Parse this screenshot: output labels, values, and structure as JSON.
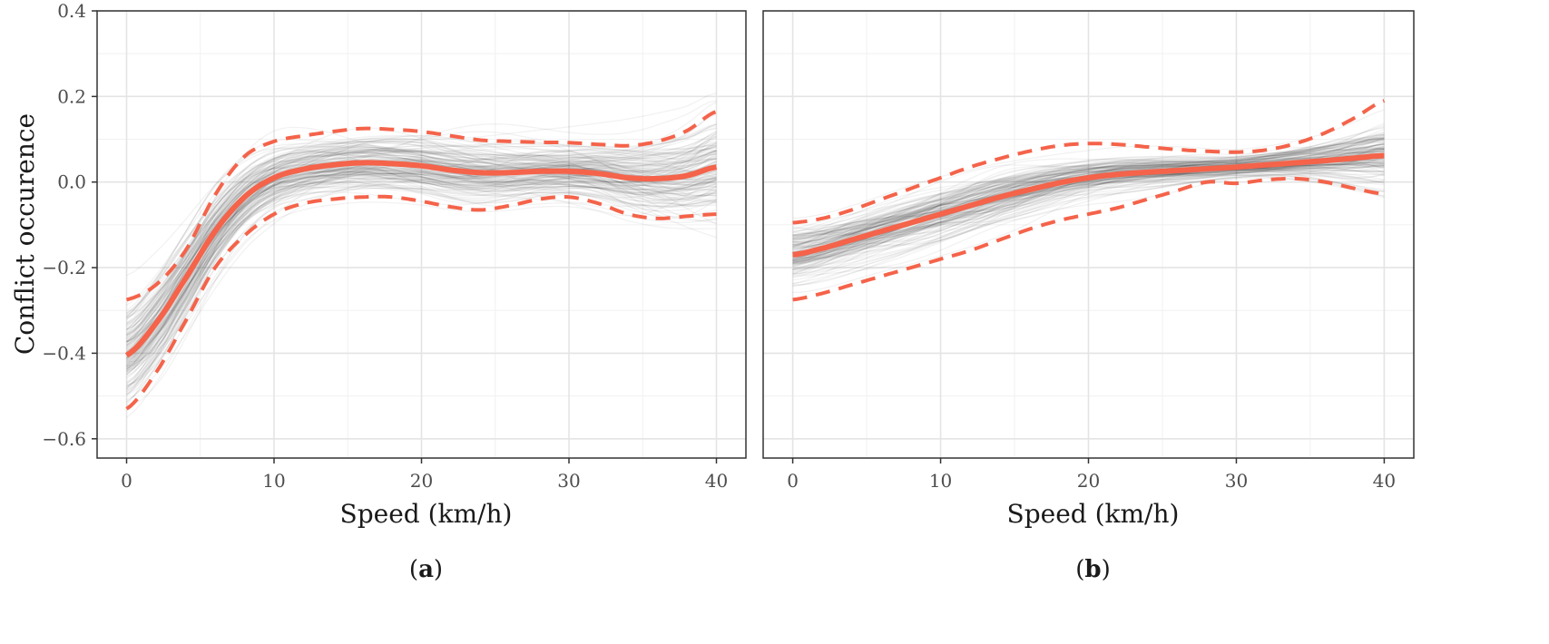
{
  "figure": {
    "ylabel": "Conflict occurence",
    "colors": {
      "background": "#ffffff",
      "grid_major": "#e4e4e4",
      "grid_minor": "#f1f1f1",
      "border": "#333333",
      "samples": "#1a1a1a",
      "mean": "#f4634a",
      "band": "#f4634a"
    }
  },
  "chart_data": [
    {
      "type": "line",
      "panel_label": "a",
      "xlabel": "Speed (km/h)",
      "ylabel": "Conflict occurence",
      "xlim": [
        -2,
        42
      ],
      "ylim": [
        -0.645,
        0.4
      ],
      "x_ticks": [
        0,
        10,
        20,
        30,
        40
      ],
      "y_ticks": [
        0.4,
        0.2,
        0.0,
        -0.2,
        -0.4,
        -0.6
      ],
      "x_tick_labels": [
        "0",
        "10",
        "20",
        "30",
        "40"
      ],
      "y_tick_labels": [
        "0.4",
        "0.2",
        "0.0",
        "−0.2",
        "−0.4",
        "−0.6"
      ],
      "grid": true,
      "x": [
        0,
        2,
        4,
        6,
        8,
        10,
        12,
        14,
        16,
        18,
        20,
        22,
        24,
        26,
        28,
        30,
        32,
        34,
        36,
        38,
        40
      ],
      "series": [
        {
          "name": "mean",
          "style": "solid",
          "values": [
            -0.405,
            -0.33,
            -0.225,
            -0.115,
            -0.035,
            0.01,
            0.03,
            0.04,
            0.045,
            0.043,
            0.038,
            0.028,
            0.022,
            0.022,
            0.025,
            0.025,
            0.02,
            0.01,
            0.008,
            0.015,
            0.035
          ]
        },
        {
          "name": "upper",
          "style": "dashed",
          "values": [
            -0.275,
            -0.24,
            -0.16,
            -0.03,
            0.06,
            0.095,
            0.108,
            0.118,
            0.125,
            0.123,
            0.118,
            0.108,
            0.098,
            0.095,
            0.093,
            0.092,
            0.088,
            0.085,
            0.095,
            0.12,
            0.165
          ]
        },
        {
          "name": "lower",
          "style": "dashed",
          "values": [
            -0.53,
            -0.445,
            -0.325,
            -0.2,
            -0.125,
            -0.075,
            -0.05,
            -0.04,
            -0.035,
            -0.035,
            -0.045,
            -0.058,
            -0.065,
            -0.055,
            -0.04,
            -0.035,
            -0.05,
            -0.075,
            -0.085,
            -0.08,
            -0.075
          ]
        }
      ],
      "sample_spread": [
        0.115,
        0.11,
        0.1,
        0.09,
        0.08,
        0.075,
        0.07,
        0.068,
        0.067,
        0.067,
        0.068,
        0.07,
        0.07,
        0.068,
        0.065,
        0.065,
        0.07,
        0.08,
        0.09,
        0.1,
        0.115
      ]
    },
    {
      "type": "line",
      "panel_label": "b",
      "xlabel": "Speed (km/h)",
      "ylabel": "",
      "xlim": [
        -2,
        42
      ],
      "ylim": [
        -0.645,
        0.4
      ],
      "x_ticks": [
        0,
        10,
        20,
        30,
        40
      ],
      "y_ticks": [],
      "x_tick_labels": [
        "0",
        "10",
        "20",
        "30",
        "40"
      ],
      "y_tick_labels": [],
      "grid": true,
      "x": [
        0,
        2,
        4,
        6,
        8,
        10,
        12,
        14,
        16,
        18,
        20,
        22,
        24,
        26,
        28,
        30,
        32,
        34,
        36,
        38,
        40
      ],
      "series": [
        {
          "name": "mean",
          "style": "solid",
          "values": [
            -0.17,
            -0.155,
            -0.135,
            -0.115,
            -0.095,
            -0.075,
            -0.055,
            -0.035,
            -0.018,
            -0.002,
            0.01,
            0.018,
            0.023,
            0.027,
            0.031,
            0.035,
            0.04,
            0.045,
            0.05,
            0.056,
            0.062
          ]
        },
        {
          "name": "upper",
          "style": "dashed",
          "values": [
            -0.095,
            -0.085,
            -0.065,
            -0.04,
            -0.015,
            0.01,
            0.035,
            0.055,
            0.072,
            0.085,
            0.09,
            0.088,
            0.082,
            0.076,
            0.072,
            0.07,
            0.075,
            0.09,
            0.115,
            0.15,
            0.19
          ]
        },
        {
          "name": "lower",
          "style": "dashed",
          "values": [
            -0.275,
            -0.26,
            -0.24,
            -0.22,
            -0.2,
            -0.18,
            -0.16,
            -0.135,
            -0.11,
            -0.09,
            -0.075,
            -0.06,
            -0.04,
            -0.02,
            0.0,
            -0.003,
            0.005,
            0.008,
            0.0,
            -0.015,
            -0.028
          ]
        }
      ],
      "sample_spread": [
        0.07,
        0.068,
        0.066,
        0.065,
        0.065,
        0.064,
        0.062,
        0.06,
        0.056,
        0.05,
        0.044,
        0.04,
        0.036,
        0.032,
        0.028,
        0.026,
        0.03,
        0.038,
        0.05,
        0.065,
        0.08
      ]
    }
  ]
}
